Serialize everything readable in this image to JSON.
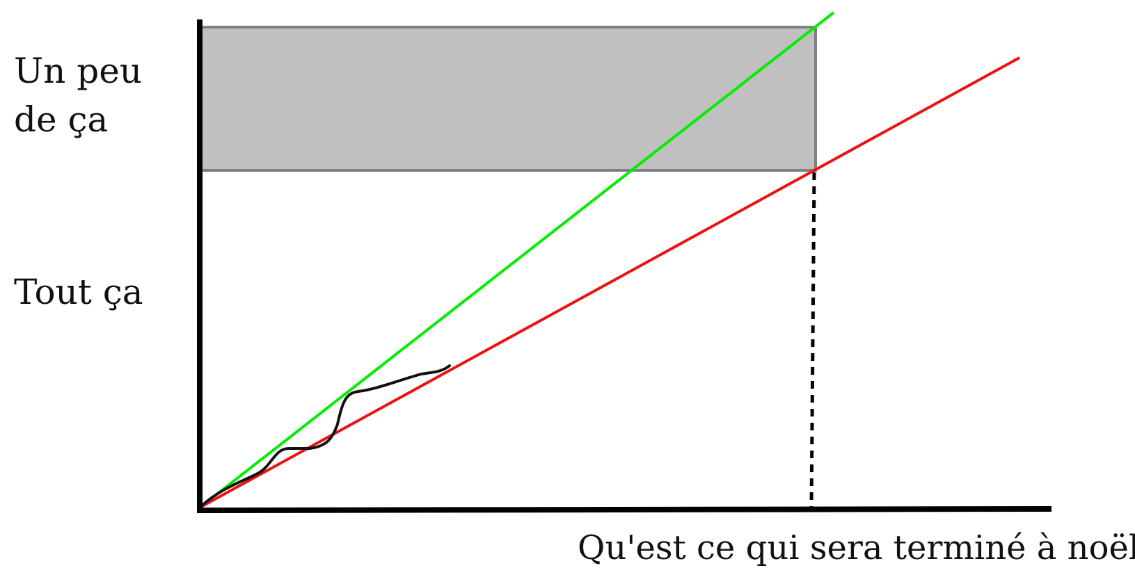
{
  "labels": {
    "top_line1": "Un peu",
    "top_line2": "de ça",
    "middle": "Tout ça",
    "x_axis": "Qu'est ce qui sera terminé à noël ?"
  },
  "colors": {
    "axis": "#000000",
    "band_fill": "#c0c0c0",
    "band_stroke": "#808080",
    "optimistic_line": "#00ee00",
    "pessimistic_line": "#ee1111",
    "progress_curve": "#111111",
    "deadline_marker": "#000000"
  },
  "legend": null
}
